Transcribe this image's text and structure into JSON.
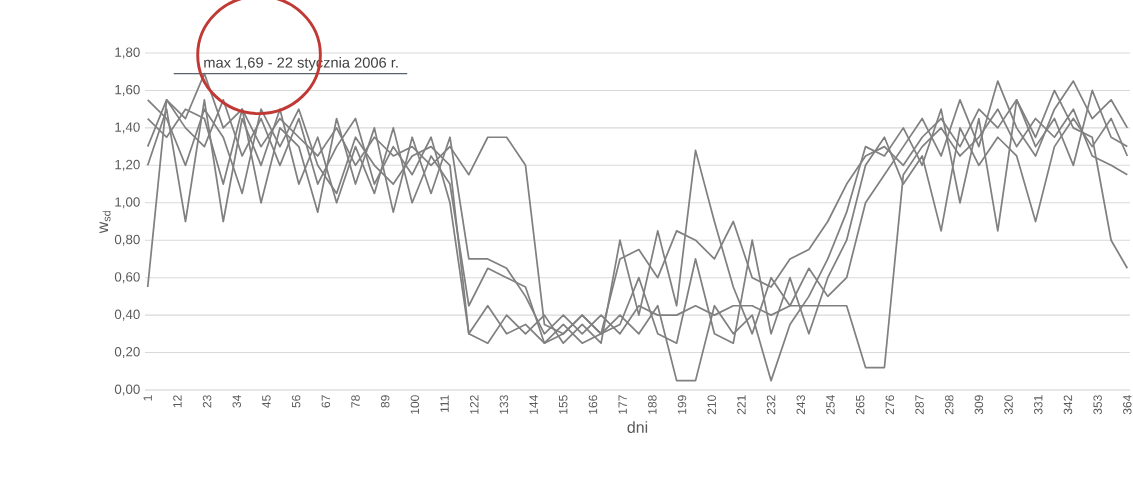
{
  "chart_data": {
    "type": "line",
    "xlabel": "dni",
    "ylabel": "w$_{sd}$",
    "annotations": [
      {
        "text": "max 1,69 - 22 stycznia 2006 r.",
        "x": 22,
        "y": 1.69
      }
    ],
    "xlim": [
      0,
      365
    ],
    "xticks": [
      1,
      12,
      23,
      34,
      45,
      56,
      67,
      78,
      89,
      100,
      111,
      122,
      133,
      144,
      155,
      166,
      177,
      188,
      199,
      210,
      221,
      232,
      243,
      254,
      265,
      276,
      287,
      298,
      309,
      320,
      331,
      342,
      353,
      364
    ],
    "ylim": [
      0,
      1.8
    ],
    "yticks": [
      {
        "value": 0,
        "label": "0,00"
      },
      {
        "value": 0.2,
        "label": "0,20"
      },
      {
        "value": 0.4,
        "label": "0,40"
      },
      {
        "value": 0.6,
        "label": "0,60"
      },
      {
        "value": 0.8,
        "label": "0,80"
      },
      {
        "value": 1.0,
        "label": "1,00"
      },
      {
        "value": 1.2,
        "label": "1,20"
      },
      {
        "value": 1.4,
        "label": "1,40"
      },
      {
        "value": 1.6,
        "label": "1,60"
      },
      {
        "value": 1.8,
        "label": "1,80"
      }
    ],
    "grid": "y",
    "marker": "none",
    "line_style": "solid",
    "x": [
      1,
      8,
      15,
      22,
      29,
      36,
      43,
      50,
      57,
      64,
      71,
      78,
      85,
      92,
      99,
      106,
      113,
      120,
      127,
      134,
      141,
      148,
      155,
      162,
      169,
      176,
      183,
      190,
      197,
      204,
      211,
      218,
      225,
      232,
      239,
      246,
      253,
      260,
      267,
      274,
      281,
      288,
      295,
      302,
      309,
      316,
      323,
      330,
      337,
      344,
      351,
      358,
      364
    ],
    "series": [
      {
        "color": "#808080",
        "values": [
          0.55,
          1.55,
          1.45,
          1.69,
          1.4,
          1.5,
          1.3,
          1.45,
          1.35,
          1.25,
          1.4,
          1.2,
          1.35,
          1.25,
          1.3,
          1.2,
          1.3,
          1.15,
          1.35,
          1.35,
          1.2,
          0.35,
          0.3,
          0.4,
          0.3,
          0.7,
          0.75,
          0.6,
          0.85,
          0.8,
          0.7,
          0.9,
          0.6,
          0.55,
          0.7,
          0.75,
          0.9,
          1.1,
          1.25,
          1.3,
          1.2,
          1.35,
          1.45,
          1.3,
          1.5,
          1.4,
          1.55,
          1.35,
          1.6,
          1.4,
          1.35,
          0.8,
          0.65
        ]
      },
      {
        "color": "#808080",
        "values": [
          1.2,
          1.5,
          0.9,
          1.55,
          0.9,
          1.45,
          1.2,
          1.5,
          1.1,
          1.35,
          1.0,
          1.3,
          1.05,
          1.4,
          1.0,
          1.25,
          1.1,
          0.45,
          0.65,
          0.6,
          0.55,
          0.25,
          0.35,
          0.25,
          0.3,
          0.4,
          0.3,
          0.45,
          0.05,
          0.05,
          0.45,
          0.3,
          0.4,
          0.05,
          0.35,
          0.5,
          0.7,
          0.95,
          1.3,
          1.25,
          1.4,
          1.2,
          1.5,
          1.0,
          1.45,
          0.85,
          1.55,
          1.3,
          1.45,
          1.2,
          1.6,
          1.35,
          1.3
        ]
      },
      {
        "color": "#808080",
        "values": [
          1.3,
          1.55,
          1.4,
          1.3,
          1.55,
          1.25,
          1.45,
          1.2,
          1.45,
          1.1,
          1.3,
          1.45,
          1.1,
          1.3,
          1.15,
          1.35,
          1.0,
          0.3,
          0.25,
          0.4,
          0.3,
          0.4,
          0.25,
          0.35,
          0.25,
          0.8,
          0.4,
          0.85,
          0.45,
          1.28,
          0.9,
          0.55,
          0.3,
          0.6,
          0.45,
          0.65,
          0.5,
          0.6,
          1.0,
          1.15,
          1.3,
          1.45,
          1.25,
          1.55,
          1.3,
          1.65,
          1.4,
          1.25,
          1.5,
          1.65,
          1.45,
          1.55,
          1.4
        ]
      },
      {
        "color": "#808080",
        "values": [
          1.45,
          1.35,
          1.5,
          1.45,
          1.1,
          1.5,
          1.0,
          1.4,
          1.3,
          0.95,
          1.45,
          1.1,
          1.4,
          0.95,
          1.35,
          1.05,
          1.35,
          0.7,
          0.7,
          0.65,
          0.5,
          0.3,
          0.4,
          0.3,
          0.4,
          0.3,
          0.45,
          0.4,
          0.4,
          0.45,
          0.4,
          0.45,
          0.45,
          0.4,
          0.45,
          0.45,
          0.45,
          0.45,
          0.12,
          0.12,
          1.15,
          1.3,
          1.4,
          1.25,
          1.35,
          1.5,
          1.3,
          1.45,
          1.35,
          1.5,
          1.25,
          1.2,
          1.15
        ]
      },
      {
        "color": "#808080",
        "values": [
          1.55,
          1.45,
          1.2,
          1.5,
          1.35,
          1.05,
          1.5,
          1.3,
          1.5,
          1.2,
          1.05,
          1.35,
          1.2,
          1.1,
          1.25,
          1.3,
          1.2,
          0.3,
          0.45,
          0.3,
          0.35,
          0.25,
          0.3,
          0.4,
          0.3,
          0.35,
          0.6,
          0.3,
          0.25,
          0.7,
          0.3,
          0.25,
          0.8,
          0.3,
          0.6,
          0.3,
          0.6,
          0.8,
          1.2,
          1.35,
          1.1,
          1.25,
          0.85,
          1.4,
          1.2,
          1.35,
          1.25,
          0.9,
          1.3,
          1.45,
          1.3,
          1.45,
          1.25
        ]
      }
    ]
  }
}
